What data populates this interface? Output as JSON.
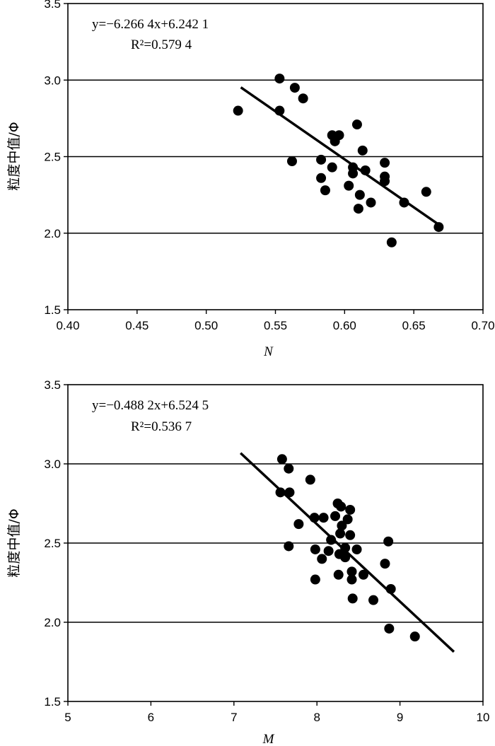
{
  "chart_data": [
    {
      "type": "scatter",
      "xlabel": "N",
      "ylabel": "粒度中值/Φ",
      "xlim": [
        0.4,
        0.7
      ],
      "ylim": [
        1.5,
        3.5
      ],
      "x_ticks": [
        "0.40",
        "0.45",
        "0.50",
        "0.55",
        "0.60",
        "0.65",
        "0.70"
      ],
      "y_ticks": [
        "1.5",
        "2.0",
        "2.5",
        "3.0",
        "3.5"
      ],
      "y_tick_values": [
        1.5,
        2.0,
        2.5,
        3.0,
        3.5
      ],
      "x_tick_values": [
        0.4,
        0.45,
        0.5,
        0.55,
        0.6,
        0.65,
        0.7
      ],
      "gridlines_y": [
        2.0,
        2.5,
        3.0
      ],
      "equation": "y=−6.266 4x+6.242 1",
      "r_squared": "R²=0.579 4",
      "trendline": {
        "slope": -6.2664,
        "intercept": 6.2421,
        "x_range": [
          0.525,
          0.668
        ]
      },
      "points": [
        {
          "x": 0.523,
          "y": 2.8
        },
        {
          "x": 0.553,
          "y": 3.01
        },
        {
          "x": 0.553,
          "y": 2.8
        },
        {
          "x": 0.564,
          "y": 2.95
        },
        {
          "x": 0.57,
          "y": 2.88
        },
        {
          "x": 0.562,
          "y": 2.47
        },
        {
          "x": 0.583,
          "y": 2.48
        },
        {
          "x": 0.583,
          "y": 2.36
        },
        {
          "x": 0.586,
          "y": 2.28
        },
        {
          "x": 0.591,
          "y": 2.64
        },
        {
          "x": 0.593,
          "y": 2.6
        },
        {
          "x": 0.596,
          "y": 2.64
        },
        {
          "x": 0.591,
          "y": 2.43
        },
        {
          "x": 0.603,
          "y": 2.31
        },
        {
          "x": 0.606,
          "y": 2.43
        },
        {
          "x": 0.606,
          "y": 2.39
        },
        {
          "x": 0.609,
          "y": 2.71
        },
        {
          "x": 0.613,
          "y": 2.54
        },
        {
          "x": 0.615,
          "y": 2.41
        },
        {
          "x": 0.611,
          "y": 2.25
        },
        {
          "x": 0.61,
          "y": 2.16
        },
        {
          "x": 0.619,
          "y": 2.2
        },
        {
          "x": 0.629,
          "y": 2.46
        },
        {
          "x": 0.629,
          "y": 2.37
        },
        {
          "x": 0.629,
          "y": 2.34
        },
        {
          "x": 0.634,
          "y": 1.94
        },
        {
          "x": 0.643,
          "y": 2.2
        },
        {
          "x": 0.659,
          "y": 2.27
        },
        {
          "x": 0.668,
          "y": 2.04
        }
      ]
    },
    {
      "type": "scatter",
      "xlabel": "M",
      "ylabel": "粒度中值/Φ",
      "xlim": [
        5,
        10
      ],
      "ylim": [
        1.5,
        3.5
      ],
      "x_ticks": [
        "5",
        "6",
        "7",
        "8",
        "9",
        "10"
      ],
      "x_tick_values": [
        5,
        6,
        7,
        8,
        9,
        10
      ],
      "y_ticks": [
        "1.5",
        "2.0",
        "2.5",
        "3.0",
        "3.5"
      ],
      "y_tick_values": [
        1.5,
        2.0,
        2.5,
        3.0,
        3.5
      ],
      "gridlines_y": [
        2.0,
        2.5,
        3.0
      ],
      "equation": "y=−0.488 2x+6.524 5",
      "r_squared": "R²=0.536 7",
      "trendline": {
        "slope": -0.4882,
        "intercept": 6.5245,
        "x_range": [
          7.08,
          9.65
        ]
      },
      "points": [
        {
          "x": 7.58,
          "y": 3.03
        },
        {
          "x": 7.66,
          "y": 2.97
        },
        {
          "x": 7.56,
          "y": 2.82
        },
        {
          "x": 7.67,
          "y": 2.82
        },
        {
          "x": 7.92,
          "y": 2.9
        },
        {
          "x": 7.78,
          "y": 2.62
        },
        {
          "x": 7.66,
          "y": 2.48
        },
        {
          "x": 7.97,
          "y": 2.66
        },
        {
          "x": 8.08,
          "y": 2.66
        },
        {
          "x": 8.25,
          "y": 2.75
        },
        {
          "x": 8.29,
          "y": 2.73
        },
        {
          "x": 8.22,
          "y": 2.67
        },
        {
          "x": 8.4,
          "y": 2.71
        },
        {
          "x": 8.37,
          "y": 2.65
        },
        {
          "x": 8.3,
          "y": 2.61
        },
        {
          "x": 8.17,
          "y": 2.52
        },
        {
          "x": 8.28,
          "y": 2.56
        },
        {
          "x": 8.4,
          "y": 2.55
        },
        {
          "x": 7.98,
          "y": 2.46
        },
        {
          "x": 8.06,
          "y": 2.4
        },
        {
          "x": 8.14,
          "y": 2.45
        },
        {
          "x": 8.27,
          "y": 2.43
        },
        {
          "x": 8.34,
          "y": 2.47
        },
        {
          "x": 8.34,
          "y": 2.41
        },
        {
          "x": 8.48,
          "y": 2.46
        },
        {
          "x": 8.26,
          "y": 2.3
        },
        {
          "x": 8.42,
          "y": 2.32
        },
        {
          "x": 8.42,
          "y": 2.27
        },
        {
          "x": 8.56,
          "y": 2.3
        },
        {
          "x": 7.98,
          "y": 2.27
        },
        {
          "x": 8.43,
          "y": 2.15
        },
        {
          "x": 8.68,
          "y": 2.14
        },
        {
          "x": 8.82,
          "y": 2.37
        },
        {
          "x": 8.86,
          "y": 2.51
        },
        {
          "x": 8.89,
          "y": 2.21
        },
        {
          "x": 8.87,
          "y": 1.96
        },
        {
          "x": 9.18,
          "y": 1.91
        }
      ]
    }
  ]
}
